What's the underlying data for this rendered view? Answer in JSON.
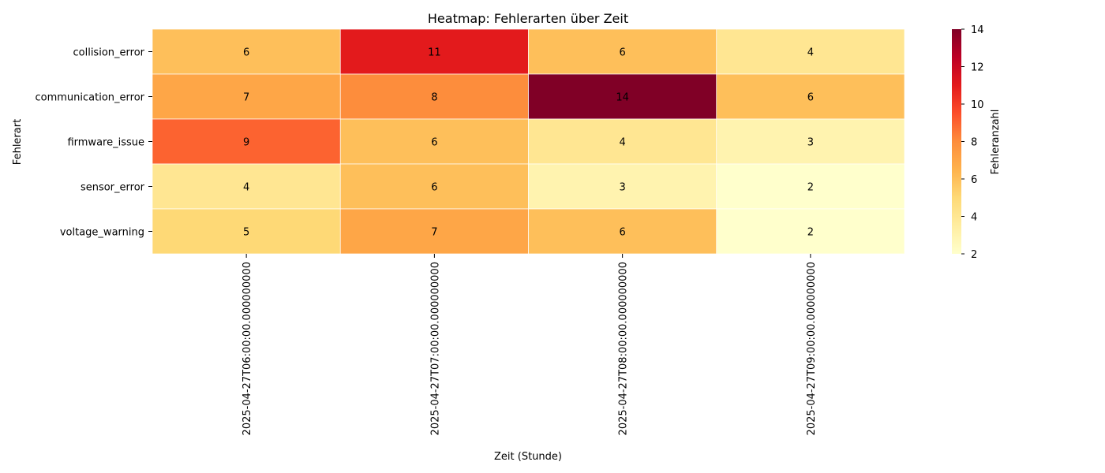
{
  "chart_data": {
    "type": "heatmap",
    "title": "Heatmap: Fehlerarten über Zeit",
    "xlabel": "Zeit (Stunde)",
    "ylabel": "Fehlerart",
    "colorbar_label": "Fehleranzahl",
    "x_categories": [
      "2025-04-27T06:00:00.000000000",
      "2025-04-27T07:00:00.000000000",
      "2025-04-27T08:00:00.000000000",
      "2025-04-27T09:00:00.000000000"
    ],
    "y_categories": [
      "collision_error",
      "communication_error",
      "firmware_issue",
      "sensor_error",
      "voltage_warning"
    ],
    "values": [
      [
        6,
        11,
        6,
        4
      ],
      [
        7,
        8,
        14,
        6
      ],
      [
        9,
        6,
        4,
        3
      ],
      [
        4,
        6,
        3,
        2
      ],
      [
        5,
        7,
        6,
        2
      ]
    ],
    "color_range": [
      2,
      14
    ],
    "colorbar_ticks": [
      "2",
      "4",
      "6",
      "8",
      "10",
      "12",
      "14"
    ],
    "colormap": "YlOrRd"
  }
}
